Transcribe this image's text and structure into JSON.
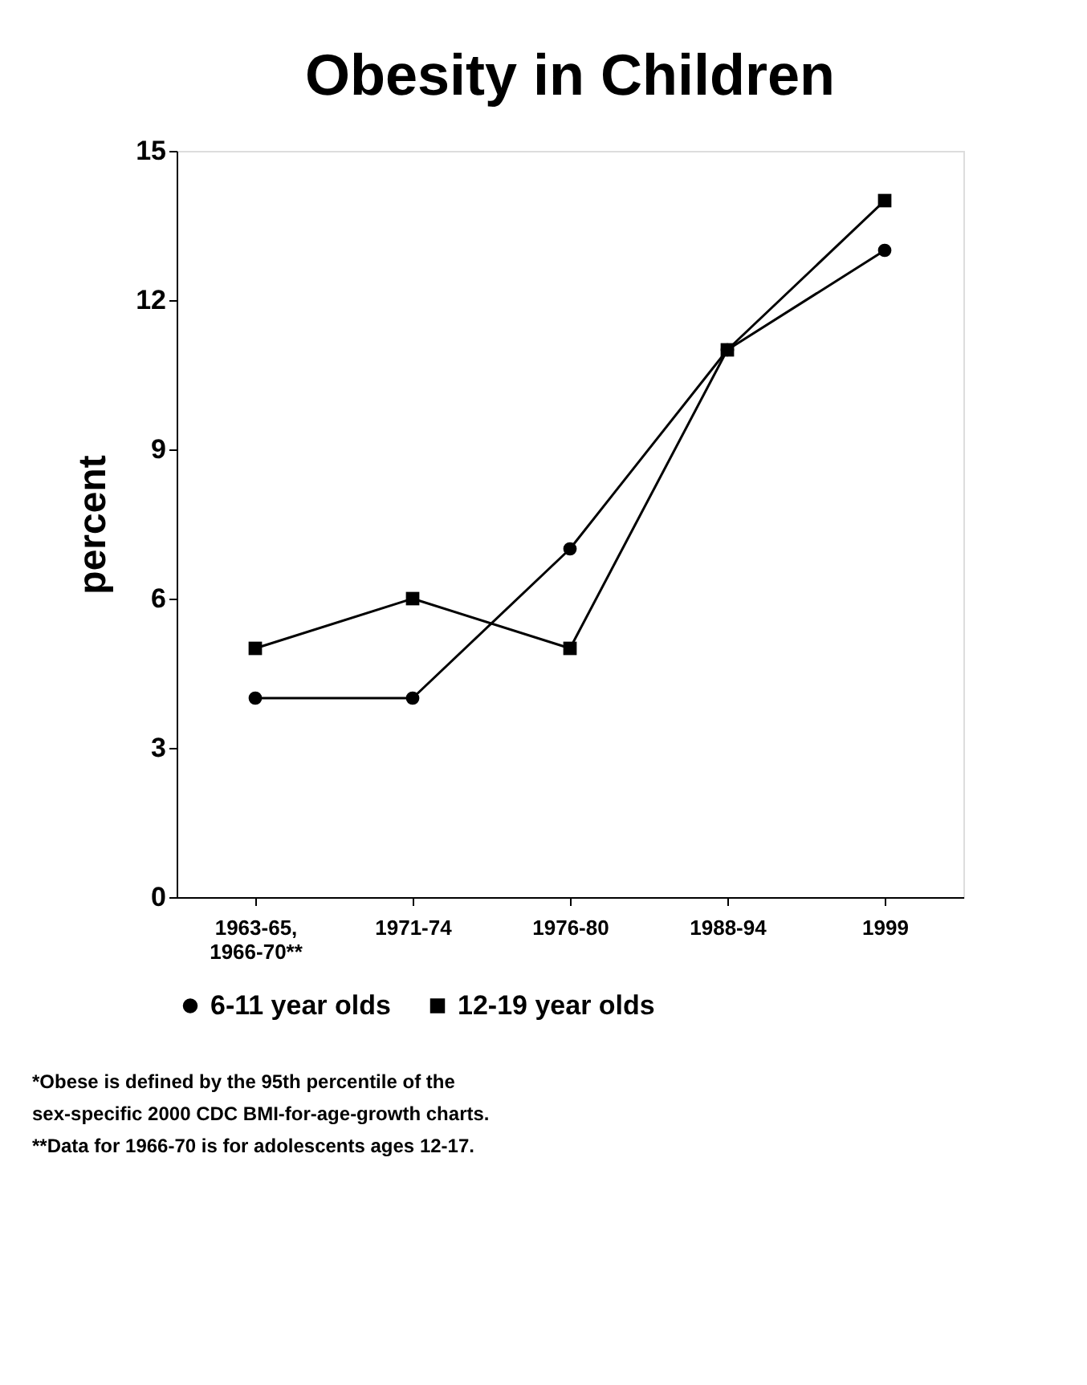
{
  "chart_data": {
    "type": "line",
    "title": "Obesity in Children",
    "ylabel": "percent",
    "categories": [
      "1963-65, 1966-70**",
      "1971-74",
      "1976-80",
      "1988-94",
      "1999"
    ],
    "series": [
      {
        "name": "6-11 year olds",
        "color": "#000000",
        "marker": "circle",
        "values": [
          4,
          4,
          7,
          11,
          13
        ]
      },
      {
        "name": "12-19 year olds",
        "color": "#000000",
        "marker": "square",
        "values": [
          5,
          6,
          5,
          11,
          14
        ]
      }
    ],
    "ylim": [
      0,
      15
    ],
    "yticks": [
      0,
      3,
      6,
      9,
      12,
      15
    ],
    "grid": false,
    "legend": "bottom",
    "line_style": "solid",
    "annotations": [
      "*Obese is defined by the 95th percentile of the",
      "sex-specific 2000 CDC BMI-for-age-growth charts.",
      "**Data for 1966-70 is for adolescents ages 12-17."
    ]
  }
}
